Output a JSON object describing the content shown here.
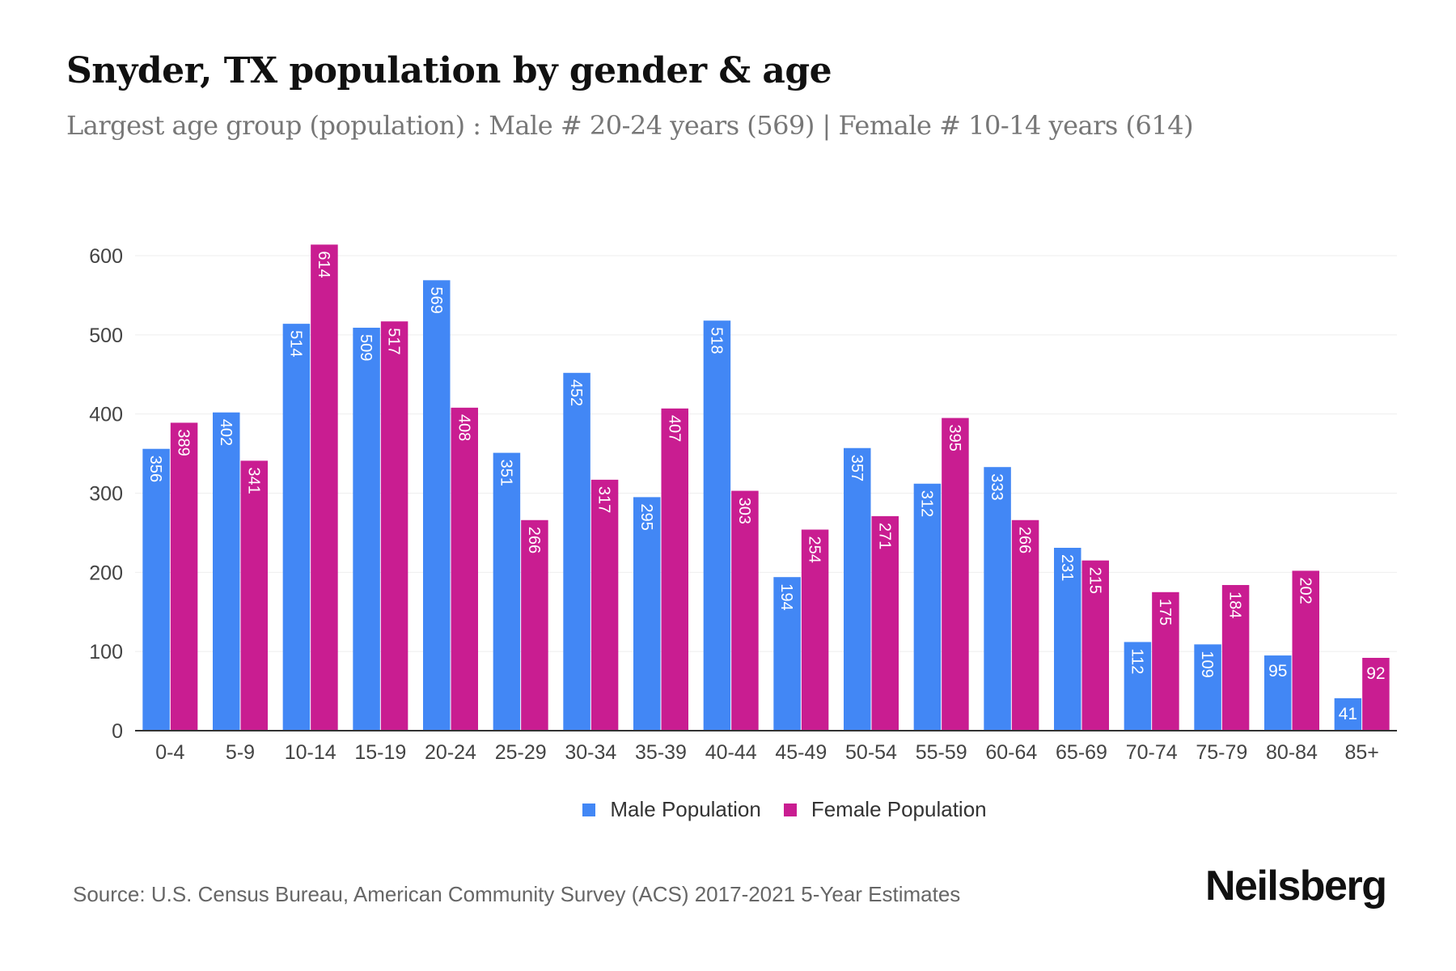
{
  "title": "Snyder, TX population by gender & age",
  "subtitle": "Largest age group (population) : Male # 20-24 years (569) | Female # 10-14 years (614)",
  "source": "Source: U.S. Census Bureau, American Community Survey (ACS) 2017-2021 5-Year Estimates",
  "logo": "Neilsberg",
  "chart_data": {
    "type": "bar",
    "title": "Snyder, TX population by gender & age",
    "xlabel": "",
    "ylabel": "",
    "ylim": [
      0,
      600
    ],
    "yticks": [
      0,
      100,
      200,
      300,
      400,
      500,
      600
    ],
    "grid": true,
    "legend_position": "bottom",
    "categories": [
      "0-4",
      "5-9",
      "10-14",
      "15-19",
      "20-24",
      "25-29",
      "30-34",
      "35-39",
      "40-44",
      "45-49",
      "50-54",
      "55-59",
      "60-64",
      "65-69",
      "70-74",
      "75-79",
      "80-84",
      "85+"
    ],
    "series": [
      {
        "name": "Male Population",
        "color": "#4287f5",
        "values": [
          356,
          402,
          514,
          509,
          569,
          351,
          452,
          295,
          518,
          194,
          357,
          312,
          333,
          231,
          112,
          109,
          95,
          41
        ]
      },
      {
        "name": "Female Population",
        "color": "#c91d91",
        "values": [
          389,
          341,
          614,
          517,
          408,
          266,
          317,
          407,
          303,
          254,
          271,
          395,
          266,
          215,
          175,
          184,
          202,
          92
        ]
      }
    ]
  }
}
